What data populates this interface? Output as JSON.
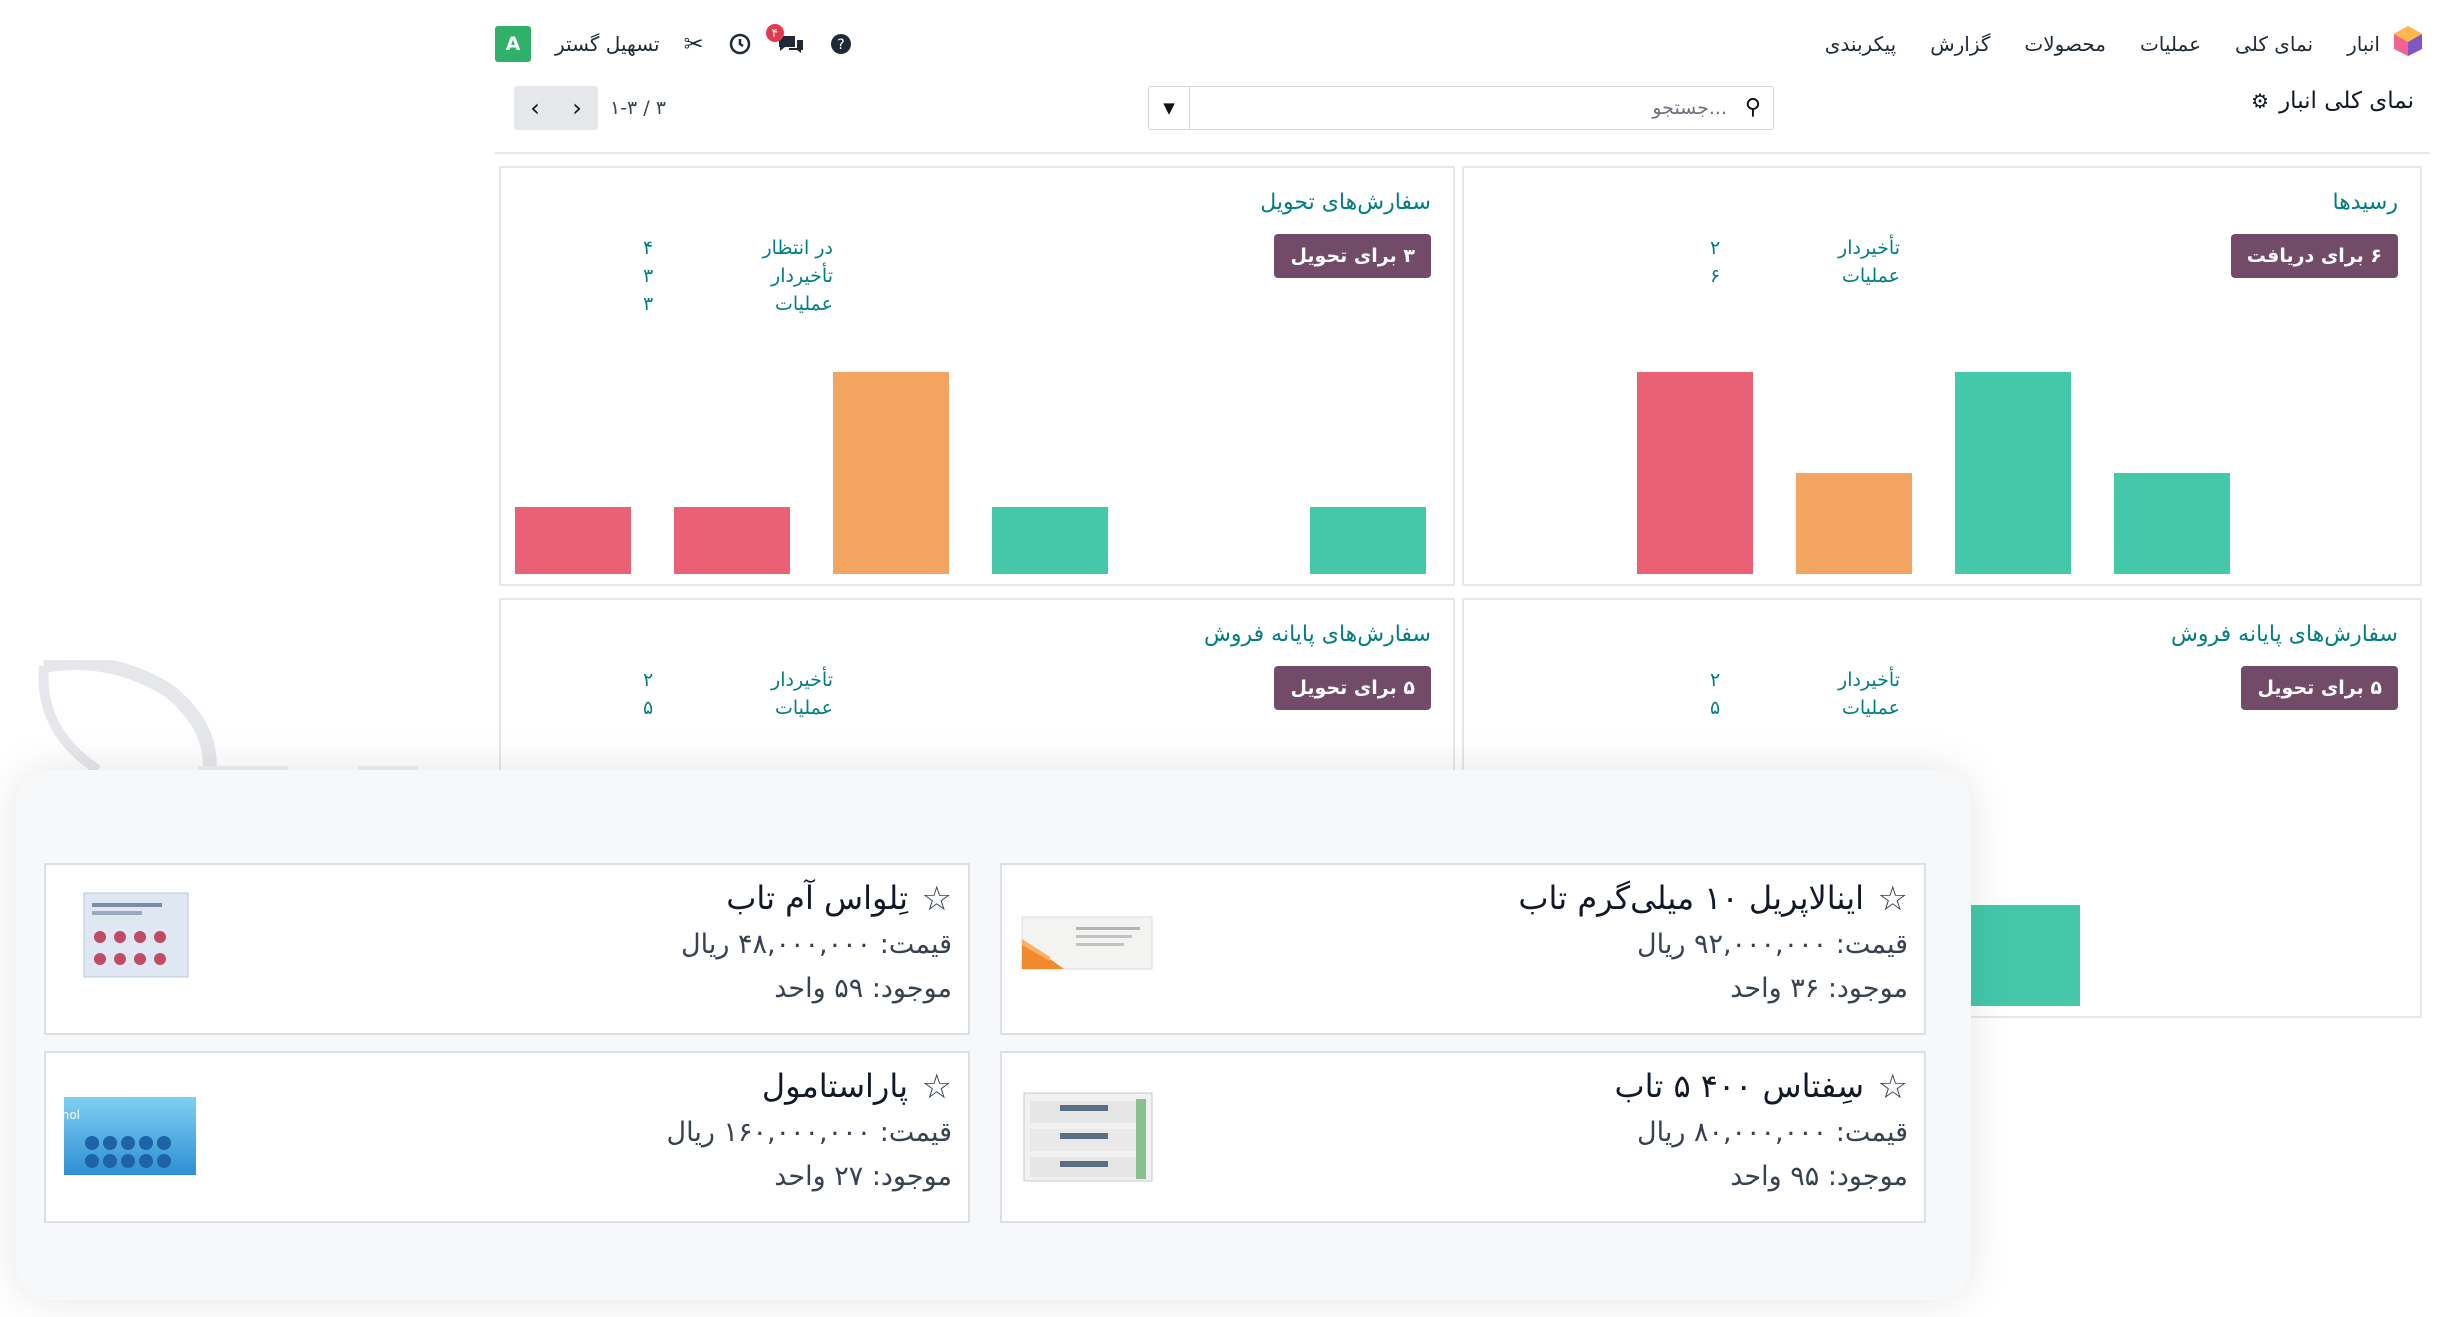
{
  "app": {
    "menu": [
      "انبار",
      "نمای کلی",
      "عملیات",
      "محصولات",
      "گزارش",
      "پیکربندی"
    ],
    "company": "تسهیل گستر",
    "user_initial": "A",
    "chat_badge": "۴",
    "colors": {
      "brand": "#714b67",
      "accent": "#017e84",
      "red": "#ea6175",
      "orange": "#f3a460",
      "teal": "#43c8aa"
    }
  },
  "control_panel": {
    "title": "نمای کلی انبار",
    "search_placeholder": "جستجو...",
    "pager_value": "۱-۳ / ۳"
  },
  "cards": [
    {
      "title": "رسیدها",
      "button": "۶ برای دریافت",
      "stats": [
        {
          "label": "تأخیردار",
          "value": "۲"
        },
        {
          "label": "عملیات",
          "value": "۶"
        }
      ],
      "bar_levels": [
        0,
        1.0,
        0.5,
        1.0,
        0.5,
        0
      ]
    },
    {
      "title": "سفارش‌های تحویل",
      "button": "۳ برای تحویل",
      "stats": [
        {
          "label": "در انتظار",
          "value": "۴"
        },
        {
          "label": "تأخیردار",
          "value": "۳"
        },
        {
          "label": "عملیات",
          "value": "۳"
        }
      ],
      "bar_levels": [
        0.33,
        0.33,
        1.0,
        0.33,
        0,
        0.33
      ]
    },
    {
      "title": "سفارش‌های پایانه فروش",
      "button": "۵ برای تحویل",
      "stats": [
        {
          "label": "تأخیردار",
          "value": "۲"
        },
        {
          "label": "عملیات",
          "value": "۵"
        }
      ]
    },
    {
      "title": "سفارش‌های پایانه فروش",
      "button": "۵ برای تحویل",
      "stats": [
        {
          "label": "تأخیردار",
          "value": "۲"
        },
        {
          "label": "عملیات",
          "value": "۵"
        }
      ],
      "bar_levels": [
        0.5
      ]
    }
  ],
  "products": [
    {
      "name": "اینالاپریل ۱۰ میلی‌گرم تاب",
      "price": "قیمت: ۹۲,۰۰۰,۰۰۰ ریال",
      "stock": "موجود: ۳۶ واحد"
    },
    {
      "name": "تِلواس آم تاب",
      "price": "قیمت: ۴۸,۰۰۰,۰۰۰ ریال",
      "stock": "موجود: ۵۹ واحد"
    },
    {
      "name": "سِفتاس ۴۰۰ ۵ تاب",
      "price": "قیمت: ۸۰,۰۰۰,۰۰۰ ریال",
      "stock": "موجود: ۹۵ واحد"
    },
    {
      "name": "پاراستامول",
      "price": "قیمت: ۱۶۰,۰۰۰,۰۰۰ ریال",
      "stock": "موجود: ۲۷ واحد",
      "image_text": "Paracetamol"
    }
  ]
}
